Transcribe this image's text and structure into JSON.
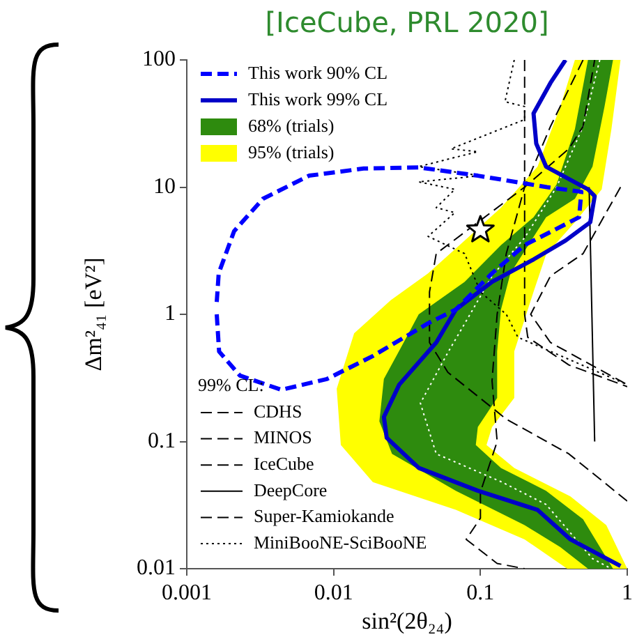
{
  "chart_data": {
    "type": "line",
    "title": "[IceCube, PRL 2020]",
    "xlabel": "sin²(2θ₂₄)",
    "ylabel": "Δm²₄₁ [eV²]",
    "legend_title": "99% CL:",
    "log": "xy",
    "xlim": [
      0.001,
      1
    ],
    "ylim": [
      0.01,
      100
    ],
    "xticks": [
      0.001,
      0.01,
      0.1,
      1
    ],
    "yticks": [
      0.01,
      0.1,
      1,
      10,
      100
    ],
    "grid": false,
    "legend": "left",
    "series": [
      {
        "type": "scatter",
        "color": "#000000",
        "marker": "star",
        "x": [
          0.1
        ],
        "values": [
          4.6
        ]
      },
      {
        "name": "This work 90% CL",
        "type": "line",
        "color": "#0000ff",
        "line_style": "dashed",
        "x": [
          0.0016,
          0.00166,
          0.0023,
          0.0044,
          0.009,
          0.0185,
          0.044,
          0.068,
          0.12,
          0.2,
          0.33,
          0.47,
          0.487,
          0.284,
          0.096,
          0.038,
          0.016,
          0.0068,
          0.0033,
          0.0021,
          0.00165,
          0.0016
        ],
        "values": [
          1.0,
          0.51,
          0.33,
          0.255,
          0.31,
          0.47,
          0.85,
          1.09,
          2.1,
          3.5,
          4.7,
          5.8,
          9.2,
          10,
          12.3,
          14.3,
          14,
          12.3,
          8.1,
          4.5,
          2.1,
          1.25
        ]
      },
      {
        "name": "This work 99% CL",
        "type": "line",
        "color": "#0000c8",
        "line_style": "solid",
        "x": [
          0.38,
          0.3,
          0.23,
          0.24,
          0.28,
          0.54,
          0.6,
          0.56,
          0.38,
          0.23,
          0.12,
          0.068,
          0.05,
          0.028,
          0.022,
          0.023,
          0.038,
          0.096,
          0.245,
          0.41,
          0.9
        ],
        "values": [
          100,
          66,
          38,
          22,
          14.5,
          9.6,
          8.5,
          5.3,
          3.8,
          2.7,
          1.8,
          1.09,
          0.6,
          0.28,
          0.156,
          0.107,
          0.062,
          0.041,
          0.029,
          0.017,
          0.0105
        ]
      },
      {
        "name": "CDHS",
        "type": "line",
        "color": "#000000",
        "line_style": "dashed",
        "x": [
          0.2,
          0.2,
          0.21,
          0.4,
          1
        ],
        "values": [
          100,
          1,
          0.66,
          0.4,
          0.27
        ]
      },
      {
        "name": "MINOS",
        "type": "line",
        "color": "#000000",
        "line_style": "dashed",
        "x": [
          0.5,
          0.3,
          0.2,
          0.15,
          0.13,
          0.12,
          0.13,
          0.1,
          0.1,
          0.08,
          0.13,
          0.2
        ],
        "values": [
          100,
          30,
          10,
          3,
          1,
          0.3,
          0.1,
          0.04,
          0.025,
          0.017,
          0.011,
          0.01
        ]
      },
      {
        "name": "IceCube",
        "type": "line",
        "color": "#000000",
        "line_style": "dashed",
        "x": [
          1,
          0.4,
          0.15,
          0.06,
          0.045,
          0.045,
          0.05,
          0.09,
          0.2,
          0.4,
          0.5,
          0.6
        ],
        "values": [
          0.034,
          0.08,
          0.15,
          0.35,
          0.6,
          1.5,
          3,
          5,
          10,
          20,
          30,
          100
        ]
      },
      {
        "name": "DeepCore",
        "type": "line",
        "color": "#000000",
        "line_style": "solid",
        "x": [
          0.55,
          0.6
        ],
        "values": [
          10,
          0.1
        ]
      },
      {
        "name": "Super-Kamiokande",
        "type": "line",
        "color": "#000000",
        "line_style": "dashed",
        "x": [
          0.9,
          0.5,
          0.3,
          0.22,
          0.3,
          1
        ],
        "values": [
          10,
          3,
          2,
          1,
          0.6,
          0.28
        ]
      },
      {
        "name": "MiniBooNE-SciBooNE",
        "type": "line",
        "color": "#000000",
        "line_style": "dotted",
        "x": [
          0.17,
          0.147,
          0.2,
          0.2,
          0.063,
          0.096,
          0.038,
          0.1,
          0.038,
          0.067,
          0.05,
          0.067,
          0.044,
          0.078,
          0.1,
          0.15,
          0.18,
          1
        ],
        "values": [
          100,
          47,
          43,
          34,
          20,
          19,
          14.5,
          12.3,
          11,
          9.6,
          6.9,
          6.3,
          4.1,
          3.0,
          1.5,
          1,
          0.66,
          0.28
        ]
      },
      {
        "type": "line",
        "color": "#ffffff",
        "line_style": "dotted",
        "x": [
          0.65,
          0.5,
          0.33,
          0.2,
          0.12,
          0.085,
          0.06,
          0.039,
          0.05,
          0.14,
          0.28,
          0.58,
          0.78
        ],
        "values": [
          100,
          30,
          10,
          4,
          2,
          1,
          0.5,
          0.2,
          0.08,
          0.048,
          0.032,
          0.012,
          0.01
        ]
      },
      {
        "name": "68% (trials)",
        "type": "area",
        "color": "#2e8b0e",
        "x": [
          0.8,
          0.7,
          0.58,
          0.44,
          0.28,
          0.16,
          0.138,
          0.13,
          0.13,
          0.096,
          0.093,
          0.138,
          0.28,
          0.5,
          0.8,
          0.54,
          0.35,
          0.2,
          0.068,
          0.025,
          0.0205,
          0.022,
          0.03,
          0.038,
          0.078,
          0.138,
          0.23,
          0.33,
          0.44,
          0.54,
          0.8
        ],
        "values": [
          100,
          43,
          14.5,
          8.1,
          5.8,
          2.1,
          1.09,
          0.51,
          0.22,
          0.13,
          0.094,
          0.062,
          0.041,
          0.0245,
          0.01,
          0.01,
          0.0148,
          0.022,
          0.041,
          0.08,
          0.144,
          0.31,
          0.6,
          1,
          1.8,
          3.5,
          5.8,
          10.5,
          28.5,
          100,
          100
        ]
      },
      {
        "name": "95% (trials)",
        "type": "area",
        "color": "#ffff00",
        "x": [
          0.9,
          0.78,
          0.67,
          0.44,
          0.28,
          0.23,
          0.17,
          0.17,
          0.12,
          0.11,
          0.17,
          0.41,
          0.72,
          1.0,
          0.39,
          0.2,
          0.068,
          0.0185,
          0.0112,
          0.0105,
          0.0138,
          0.0245,
          0.044,
          0.078,
          0.138,
          0.245,
          0.35,
          0.44,
          0.9
        ],
        "values": [
          100,
          28.5,
          9.6,
          5.3,
          2.95,
          1.5,
          0.51,
          0.22,
          0.13,
          0.094,
          0.062,
          0.037,
          0.022,
          0.01,
          0.01,
          0.017,
          0.029,
          0.048,
          0.094,
          0.26,
          0.71,
          1.29,
          2.1,
          3.8,
          6.9,
          14.5,
          43,
          100,
          100
        ]
      }
    ]
  }
}
